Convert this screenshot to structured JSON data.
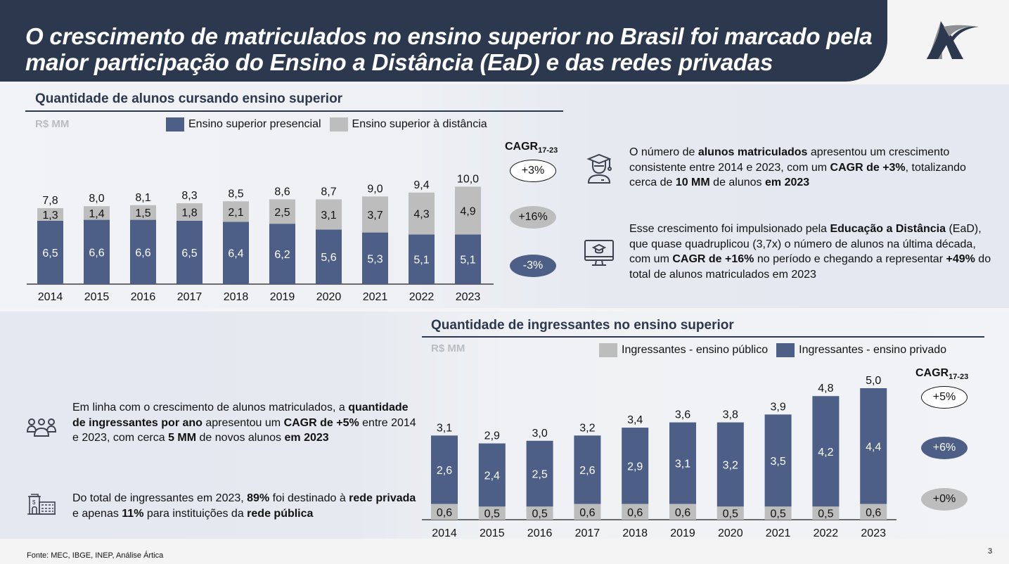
{
  "title": "O crescimento de matriculados no ensino superior no Brasil foi marcado pela maior participação do Ensino a Distância (EaD) e das redes privadas",
  "logo": "artica-logo",
  "colors": {
    "navy": "#2c384e",
    "blue_bar": "#4d5f86",
    "grey_bar": "#bdbdbd"
  },
  "chart_data": [
    {
      "type": "bar",
      "stacked": true,
      "title": "Quantidade de alunos cursando ensino superior",
      "unit_label": "R$ MM",
      "xlabel": "",
      "ylabel": "",
      "categories": [
        "2014",
        "2015",
        "2016",
        "2017",
        "2018",
        "2019",
        "2020",
        "2021",
        "2022",
        "2023"
      ],
      "series": [
        {
          "name": "Ensino superior presencial",
          "color": "#4d5f86",
          "values": [
            6.5,
            6.6,
            6.6,
            6.5,
            6.4,
            6.2,
            5.6,
            5.3,
            5.1,
            5.1
          ],
          "labels": [
            "6,5",
            "6,6",
            "6,6",
            "6,5",
            "6,4",
            "6,2",
            "5,6",
            "5,3",
            "5,1",
            "5,1"
          ]
        },
        {
          "name": "Ensino superior à distância",
          "color": "#bdbdbd",
          "values": [
            1.3,
            1.4,
            1.5,
            1.8,
            2.1,
            2.5,
            3.1,
            3.7,
            4.3,
            4.9
          ],
          "labels": [
            "1,3",
            "1,4",
            "1,5",
            "1,8",
            "2,1",
            "2,5",
            "3,1",
            "3,7",
            "4,3",
            "4,9"
          ]
        }
      ],
      "totals": [
        7.8,
        8.0,
        8.1,
        8.3,
        8.5,
        8.6,
        8.7,
        9.0,
        9.4,
        10.0
      ],
      "total_labels": [
        "7,8",
        "8,0",
        "8,1",
        "8,3",
        "8,5",
        "8,6",
        "8,7",
        "9,0",
        "9,4",
        "10,0"
      ],
      "ylim": [
        0,
        10.5
      ],
      "grid": false,
      "legend_position": "top",
      "cagr": {
        "label": "CAGR",
        "subscript": "17-23",
        "total": "+3%",
        "ead": "+16%",
        "presencial": "-3%"
      }
    },
    {
      "type": "bar",
      "stacked": true,
      "title": "Quantidade de ingressantes no ensino superior",
      "unit_label": "R$ MM",
      "xlabel": "",
      "ylabel": "",
      "categories": [
        "2014",
        "2015",
        "2016",
        "2017",
        "2018",
        "2019",
        "2020",
        "2021",
        "2022",
        "2023"
      ],
      "series": [
        {
          "name": "Ingressantes - ensino público",
          "color": "#bdbdbd",
          "values": [
            0.6,
            0.5,
            0.5,
            0.6,
            0.6,
            0.6,
            0.5,
            0.5,
            0.5,
            0.6
          ],
          "labels": [
            "0,6",
            "0,5",
            "0,5",
            "0,6",
            "0,6",
            "0,6",
            "0,5",
            "0,5",
            "0,5",
            "0,6"
          ]
        },
        {
          "name": "Ingressantes - ensino privado",
          "color": "#4d5f86",
          "values": [
            2.6,
            2.4,
            2.5,
            2.6,
            2.9,
            3.1,
            3.2,
            3.5,
            4.2,
            4.4
          ],
          "labels": [
            "2,6",
            "2,4",
            "2,5",
            "2,6",
            "2,9",
            "3,1",
            "3,2",
            "3,5",
            "4,2",
            "4,4"
          ]
        }
      ],
      "totals": [
        3.1,
        2.9,
        3.0,
        3.2,
        3.4,
        3.6,
        3.8,
        3.9,
        4.8,
        5.0
      ],
      "total_labels": [
        "3,1",
        "2,9",
        "3,0",
        "3,2",
        "3,4",
        "3,6",
        "3,8",
        "3,9",
        "4,8",
        "5,0"
      ],
      "ylim": [
        0,
        5.2
      ],
      "grid": false,
      "legend_position": "top",
      "cagr": {
        "label": "CAGR",
        "subscript": "17-23",
        "total": "+5%",
        "privado": "+6%",
        "publico": "+0%"
      }
    }
  ],
  "insights_top": [
    {
      "icon": "graduate-icon",
      "html": "O número de <b>alunos matriculados</b> apresentou um crescimento consistente entre 2014 e 2023, com um <b>CAGR de +3%</b>, totalizando cerca de <b>10 MM</b> de alunos <b>em 2023</b>"
    },
    {
      "icon": "online-education-icon",
      "html": "Esse crescimento foi impulsionado pela <b>Educação a Distância</b> (EaD), que quase quadruplicou (3,7x) o número de alunos na última década, com um <b>CAGR de +16%</b> no período e chegando a representar <b>+49%</b> do total de alunos matriculados em 2023"
    }
  ],
  "insights_bottom": [
    {
      "icon": "people-group-icon",
      "html": "Em linha com o crescimento de alunos matriculados, a <b>quantidade de ingressantes por ano</b> apresentou um <b>CAGR de +5%</b> entre 2014 e 2023, com cerca <b>5 MM</b> de novos alunos <b>em 2023</b>"
    },
    {
      "icon": "institution-building-icon",
      "html": "Do total de ingressantes em 2023, <b>89%</b> foi destinado à <b>rede privada</b> e apenas <b>11%</b> para instituições da <b>rede pública</b>"
    }
  ],
  "footer": {
    "source": "Fonte: MEC, IBGE, INEP, Análise Ártica",
    "page_number": "3"
  }
}
